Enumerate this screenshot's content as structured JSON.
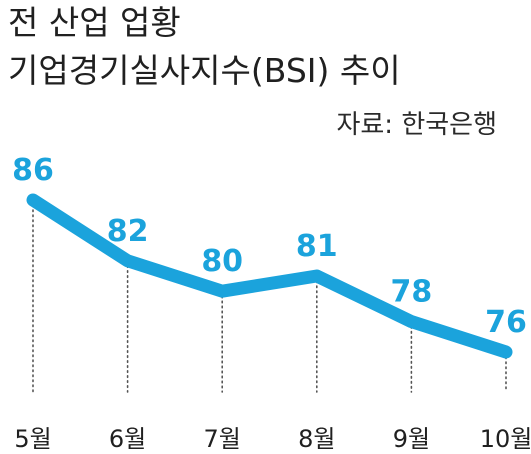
{
  "header": {
    "title_line1": "전 산업 업황",
    "title_line2": "기업경기실사지수(BSI) 추이",
    "source": "자료: 한국은행"
  },
  "colors": {
    "line": "#1ba3dc",
    "value_label": "#1ba3dc",
    "text": "#202020",
    "dotted_guide": "#555555"
  },
  "chart_data": {
    "type": "line",
    "title": "전 산업 업황 기업경기실사지수(BSI) 추이",
    "categories": [
      "5월",
      "6월",
      "7월",
      "8월",
      "9월",
      "10월"
    ],
    "values": [
      86,
      82,
      80,
      81,
      78,
      76
    ],
    "data_labels": [
      "86",
      "82",
      "80",
      "81",
      "78",
      "76"
    ],
    "xlabel": "",
    "ylabel": "",
    "ylim": [
      70,
      90
    ],
    "grid": false,
    "legend": "none"
  }
}
